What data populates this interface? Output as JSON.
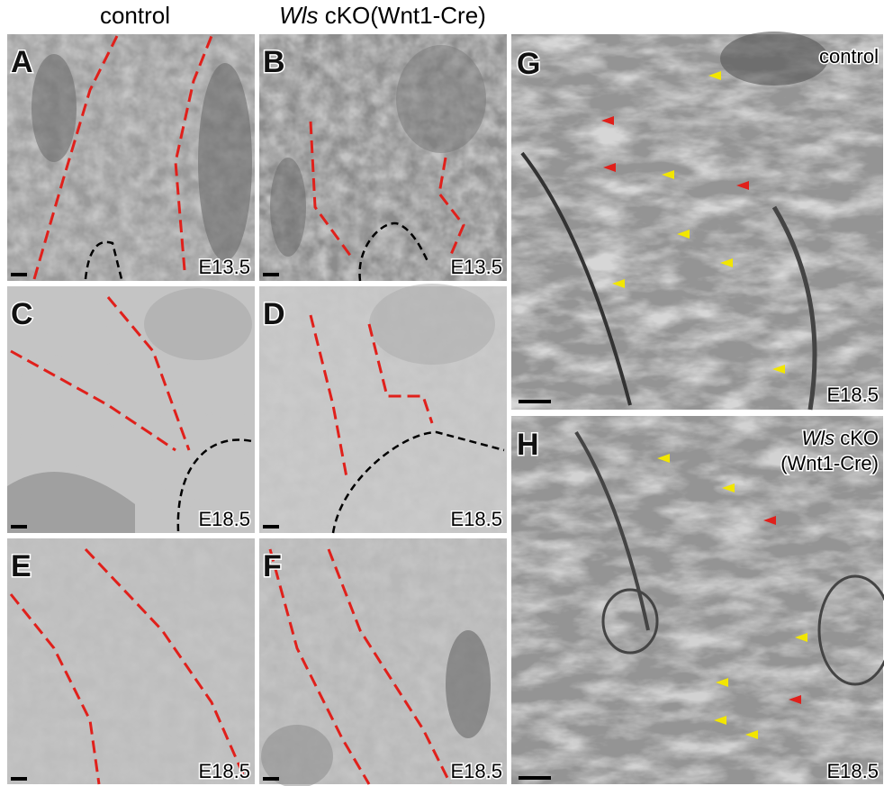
{
  "columns": [
    {
      "title": "control"
    },
    {
      "title_italic": "Wls",
      "title": " cKO(Wnt1-Cre)"
    }
  ],
  "panels": [
    {
      "letter": "A",
      "stage": "E13.5"
    },
    {
      "letter": "B",
      "stage": "E13.5"
    },
    {
      "letter": "C",
      "stage": "E18.5"
    },
    {
      "letter": "D",
      "stage": "E18.5"
    },
    {
      "letter": "E",
      "stage": "E18.5"
    },
    {
      "letter": "F",
      "stage": "E18.5"
    },
    {
      "letter": "G",
      "stage": "E18.5",
      "condition": "control"
    },
    {
      "letter": "H",
      "stage": "E18.5",
      "condition_italic": "Wls",
      "condition": " cKO",
      "condition_line2": "(Wnt1-Cre)"
    }
  ]
}
